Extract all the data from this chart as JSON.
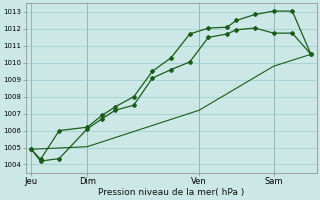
{
  "xlabel": "Pression niveau de la mer( hPa )",
  "bg_color": "#cce8e6",
  "grid_color": "#99cccc",
  "line_color": "#1a5c1a",
  "ylim": [
    1003.5,
    1013.5
  ],
  "yticks": [
    1004,
    1005,
    1006,
    1007,
    1008,
    1009,
    1010,
    1011,
    1012,
    1013
  ],
  "xtick_labels": [
    "Jeu",
    "Dim",
    "Ven",
    "Sam"
  ],
  "xtick_positions": [
    0,
    3,
    9,
    13
  ],
  "xlim": [
    -0.3,
    15.3
  ],
  "line1_x": [
    0,
    0.5,
    1.5,
    3,
    3.8,
    4.5,
    5.5,
    6.5,
    7.5,
    8.5,
    9.5,
    10.5,
    11,
    12,
    13,
    14,
    15
  ],
  "line1_y": [
    1004.9,
    1004.2,
    1004.35,
    1006.1,
    1006.7,
    1007.2,
    1007.5,
    1009.1,
    1009.6,
    1010.05,
    1011.5,
    1011.7,
    1011.95,
    1012.05,
    1011.75,
    1011.75,
    1010.5
  ],
  "line2_x": [
    0,
    0.5,
    1.5,
    3,
    3.8,
    4.5,
    5.5,
    6.5,
    7.5,
    8.5,
    9.5,
    10.5,
    11,
    12,
    13,
    14,
    15
  ],
  "line2_y": [
    1004.9,
    1004.3,
    1006.0,
    1006.2,
    1006.9,
    1007.4,
    1008.0,
    1009.5,
    1010.3,
    1011.7,
    1012.05,
    1012.1,
    1012.5,
    1012.85,
    1013.05,
    1013.05,
    1010.5
  ],
  "line3_x": [
    0,
    3,
    9,
    13,
    15
  ],
  "line3_y": [
    1004.9,
    1005.05,
    1007.2,
    1009.8,
    1010.5
  ],
  "vlines": [
    0,
    3,
    9,
    13
  ]
}
